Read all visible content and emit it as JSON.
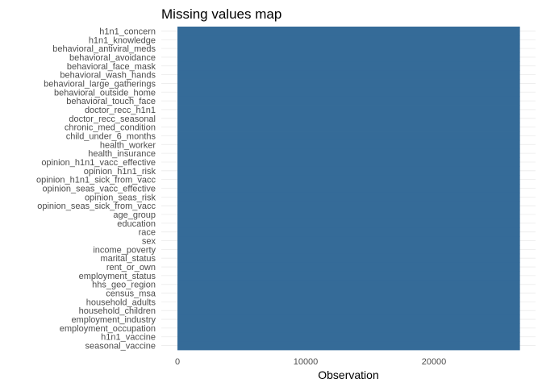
{
  "chart_data": {
    "type": "heatmap",
    "title": "Missing values map",
    "xlabel": "Observation",
    "ylabel": "",
    "xlim": [
      0,
      26707
    ],
    "xticks": [
      0,
      10000,
      20000
    ],
    "xtick_labels": [
      "0",
      "10000",
      "20000"
    ],
    "n_observations": 26707,
    "variables": [
      "h1n1_concern",
      "h1n1_knowledge",
      "behavioral_antiviral_meds",
      "behavioral_avoidance",
      "behavioral_face_mask",
      "behavioral_wash_hands",
      "behavioral_large_gatherings",
      "behavioral_outside_home",
      "behavioral_touch_face",
      "doctor_recc_h1n1",
      "doctor_recc_seasonal",
      "chronic_med_condition",
      "child_under_6_months",
      "health_worker",
      "health_insurance",
      "opinion_h1n1_vacc_effective",
      "opinion_h1n1_risk",
      "opinion_h1n1_sick_from_vacc",
      "opinion_seas_vacc_effective",
      "opinion_seas_risk",
      "opinion_seas_sick_from_vacc",
      "age_group",
      "education",
      "race",
      "sex",
      "income_poverty",
      "marital_status",
      "rent_or_own",
      "employment_status",
      "hhs_geo_region",
      "census_msa",
      "household_adults",
      "household_children",
      "employment_industry",
      "employment_occupation",
      "h1n1_vaccine",
      "seasonal_vaccine"
    ],
    "present_color": "#356b98",
    "grid": true,
    "legend": "none"
  }
}
